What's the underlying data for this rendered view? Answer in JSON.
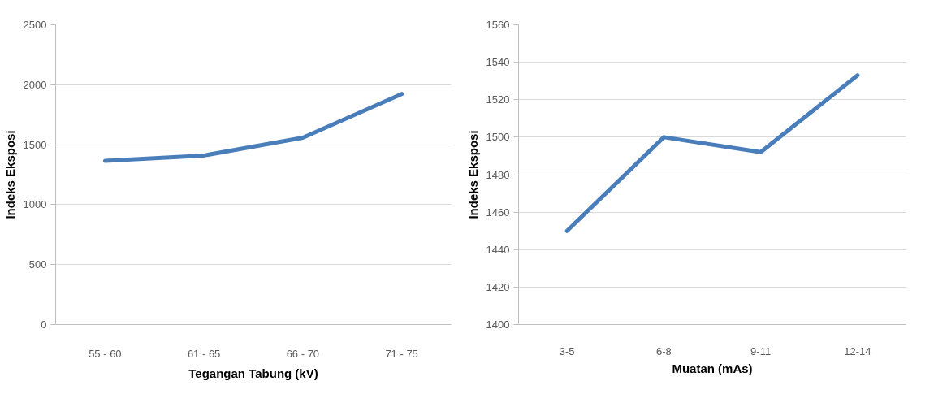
{
  "chart_data": [
    {
      "type": "line",
      "categories": [
        "55 - 60",
        "61 - 65",
        "66 - 70",
        "71 - 75"
      ],
      "xlabel": "Tegangan Tabung (kV)",
      "ylabel": "Indeks Eksposi",
      "series": [
        {
          "color": "#4a7ebb",
          "values": [
            1365,
            1410,
            1558,
            1923
          ]
        }
      ],
      "ylim": [
        0,
        2500
      ],
      "yticks": [
        0,
        500,
        1000,
        1500,
        2000,
        2500
      ],
      "grid": "y"
    },
    {
      "type": "line",
      "categories": [
        "3-5",
        "6-8",
        "9-11",
        "12-14"
      ],
      "xlabel": "Muatan (mAs)",
      "ylabel": "Indeks Eksposi",
      "series": [
        {
          "color": "#4a7ebb",
          "values": [
            1450,
            1500,
            1492,
            1533
          ]
        }
      ],
      "ylim": [
        1400,
        1560
      ],
      "yticks": [
        1400,
        1420,
        1440,
        1460,
        1480,
        1500,
        1520,
        1540,
        1560
      ],
      "grid": "y"
    }
  ]
}
